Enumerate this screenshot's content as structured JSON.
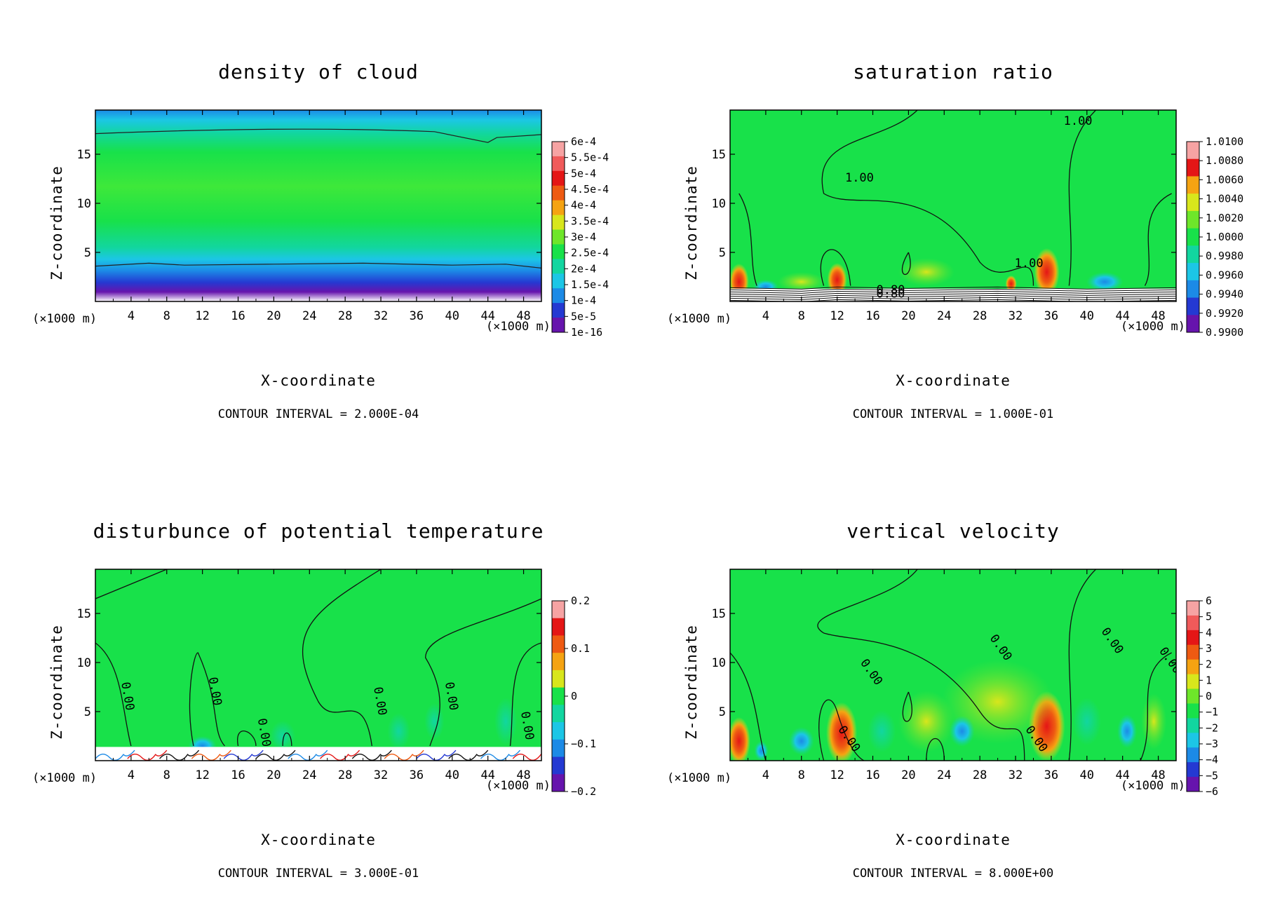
{
  "figure": {
    "layout": "2x2 grid of contour plots"
  },
  "chart_data": [
    {
      "type": "heatmap",
      "title": "density of cloud",
      "xlabel": "X-coordinate",
      "ylabel": "Z-coordinate",
      "x_unit_left": "(×1000 m)",
      "x_unit_right": "(×1000 m)",
      "xlim": [
        0,
        50
      ],
      "ylim": [
        0,
        19.5
      ],
      "x_ticks": [
        4,
        8,
        12,
        16,
        20,
        24,
        28,
        32,
        36,
        40,
        44,
        48
      ],
      "y_ticks": [
        5,
        10,
        15
      ],
      "contour_interval": "CONTOUR INTERVAL = 2.000E-04",
      "colorbar_labels": [
        "6e-4",
        "5.5e-4",
        "5e-4",
        "4.5e-4",
        "4e-4",
        "3.5e-4",
        "3e-4",
        "2.5e-4",
        "2e-4",
        "1.5e-4",
        "1e-4",
        "5e-5",
        "1e-16"
      ],
      "colorbar_colors": [
        "#f6a3a3",
        "#f05a5a",
        "#e41616",
        "#ee5a12",
        "#f5a312",
        "#d8e61c",
        "#6ee62a",
        "#18e14a",
        "#12d6a0",
        "#1cc6e6",
        "#1c8ae6",
        "#2439d2",
        "#6614ad"
      ],
      "field": "density"
    },
    {
      "type": "heatmap",
      "title": "saturation ratio",
      "xlabel": "X-coordinate",
      "ylabel": "Z-coordinate",
      "x_unit_left": "(×1000 m)",
      "x_unit_right": "(×1000 m)",
      "xlim": [
        0,
        50
      ],
      "ylim": [
        0,
        19.5
      ],
      "x_ticks": [
        4,
        8,
        12,
        16,
        20,
        24,
        28,
        32,
        36,
        40,
        44,
        48
      ],
      "y_ticks": [
        5,
        10,
        15
      ],
      "contour_interval": "CONTOUR INTERVAL = 1.000E-01",
      "colorbar_labels": [
        "1.0100",
        "1.0080",
        "1.0060",
        "1.0040",
        "1.0020",
        "1.0000",
        "0.9980",
        "0.9960",
        "0.9940",
        "0.9920",
        "0.9900"
      ],
      "colorbar_colors": [
        "#f6a3a3",
        "#e41616",
        "#f5a312",
        "#d8e61c",
        "#6ee62a",
        "#18e14a",
        "#12d6a0",
        "#1cc6e6",
        "#1c8ae6",
        "#2439d2",
        "#6614ad"
      ],
      "contour_labels": [
        "1.00",
        "1.00",
        "1.00",
        "0.80",
        "0.80"
      ],
      "field": "saturation"
    },
    {
      "type": "heatmap",
      "title": "disturbunce of potential temperature",
      "xlabel": "X-coordinate",
      "ylabel": "Z-coordinate",
      "x_unit_left": "(×1000 m)",
      "x_unit_right": "(×1000 m)",
      "xlim": [
        0,
        50
      ],
      "ylim": [
        0,
        19.5
      ],
      "x_ticks": [
        4,
        8,
        12,
        16,
        20,
        24,
        28,
        32,
        36,
        40,
        44,
        48
      ],
      "y_ticks": [
        5,
        10,
        15
      ],
      "contour_interval": "CONTOUR INTERVAL = 3.000E-01",
      "colorbar_labels": [
        "0.2",
        "0.1",
        "0",
        "−0.1",
        "−0.2"
      ],
      "colorbar_colors": [
        "#f6a3a3",
        "#e41616",
        "#ee5a12",
        "#f5a312",
        "#d8e61c",
        "#18e14a",
        "#12d6a0",
        "#1cc6e6",
        "#1c8ae6",
        "#2439d2",
        "#6614ad"
      ],
      "contour_labels": [
        "0.00",
        "0.00",
        "0.00",
        "0.00",
        "0.00",
        "0.00"
      ],
      "field": "theta"
    },
    {
      "type": "heatmap",
      "title": "vertical velocity",
      "xlabel": "X-coordinate",
      "ylabel": "Z-coordinate",
      "x_unit_left": "(×1000 m)",
      "x_unit_right": "(×1000 m)",
      "xlim": [
        0,
        50
      ],
      "ylim": [
        0,
        19.5
      ],
      "x_ticks": [
        4,
        8,
        12,
        16,
        20,
        24,
        28,
        32,
        36,
        40,
        44,
        48
      ],
      "y_ticks": [
        5,
        10,
        15
      ],
      "contour_interval": "CONTOUR INTERVAL = 8.000E+00",
      "colorbar_labels": [
        "6",
        "5",
        "4",
        "3",
        "2",
        "1",
        "0",
        "−1",
        "−2",
        "−3",
        "−4",
        "−5",
        "−6"
      ],
      "colorbar_colors": [
        "#f6a3a3",
        "#f05a5a",
        "#e41616",
        "#ee5a12",
        "#f5a312",
        "#d8e61c",
        "#6ee62a",
        "#18e14a",
        "#12d6a0",
        "#1cc6e6",
        "#1c8ae6",
        "#2439d2",
        "#6614ad"
      ],
      "contour_labels": [
        "0.00",
        "0.00",
        "0.00",
        "0.00",
        "0.00",
        "0.00"
      ],
      "field": "velocity"
    }
  ]
}
